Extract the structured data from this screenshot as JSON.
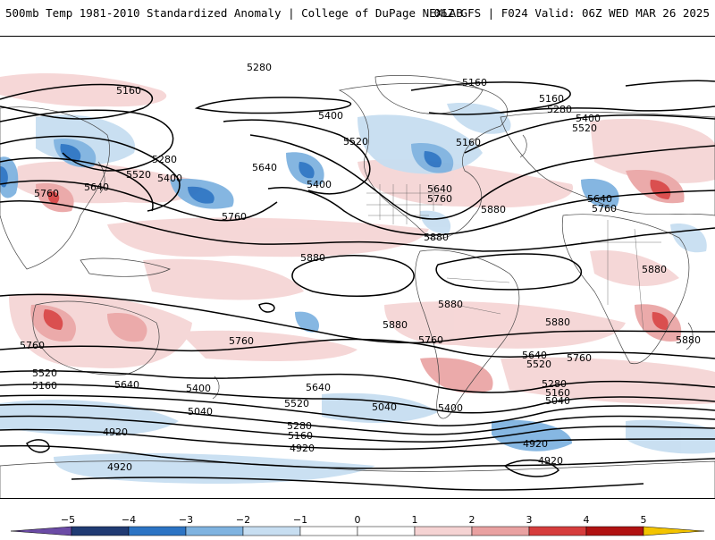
{
  "header": {
    "left": "500mb Temp 1981-2010 Standardized Anomaly | College of DuPage NEXLAB",
    "right": "06Z GFS | F024 Valid: 06Z WED MAR 26 2025"
  },
  "colors": {
    "anom_neg5": "#6b4ba6",
    "anom_neg4": "#203b73",
    "anom_neg3": "#2c74c4",
    "anom_neg2": "#7fb3e0",
    "anom_neg1": "#c7def1",
    "anom_0": "#ffffff",
    "anom_pos1": "#f5d3d3",
    "anom_pos2": "#e9a1a1",
    "anom_pos3": "#d63d3d",
    "anom_pos4": "#b01212",
    "anom_pos5": "#7a0000",
    "anom_max": "#f3c400"
  },
  "colorbar": {
    "ticks": [
      "−5",
      "−4",
      "−3",
      "−2",
      "−1",
      "0",
      "1",
      "2",
      "3",
      "4",
      "5"
    ]
  },
  "contour_labels": {
    "h5280_top": "5280",
    "h5160_a": "5160",
    "h5160_b": "5160",
    "h5160_c": "5160",
    "h5160_d": "5160",
    "h5280_b": "5280",
    "h5280_c": "5280",
    "h5400_a": "5400",
    "h5400_b": "5400",
    "h5400_c": "5400",
    "h5400_d": "5400",
    "h5520_a": "5520",
    "h5520_b": "5520",
    "h5520_c": "5520",
    "h5640_a": "5640",
    "h5640_b": "5640",
    "h5640_c": "5640",
    "h5640_d": "5640",
    "h5760_a": "5760",
    "h5760_b": "5760",
    "h5760_c": "5760",
    "h5880_a": "5880",
    "h5880_b": "5880",
    "h5880_c": "5880",
    "h5880_d": "5880",
    "h5880_e": "5880",
    "h5880_f": "5880",
    "h5880_g": "5880",
    "s5760_a": "5760",
    "s5760_b": "5760",
    "s5760_c": "5760",
    "s5760_d": "5760",
    "s5640_a": "5640",
    "s5640_b": "5640",
    "s5640_c": "5640",
    "s5520_a": "5520",
    "s5520_b": "5520",
    "s5520_c": "5520",
    "s5400_a": "5400",
    "s5400_b": "5400",
    "s5280_a": "5280",
    "s5280_b": "5280",
    "s5160_a": "5160",
    "s5160_b": "5160",
    "s5160_c": "5160",
    "s5040_a": "5040",
    "s5040_b": "5040",
    "s5040_c": "5040",
    "s4920_a": "4920",
    "s4920_b": "4920",
    "s4920_c": "4920",
    "s4920_d": "4920",
    "s4920_e": "4920"
  }
}
